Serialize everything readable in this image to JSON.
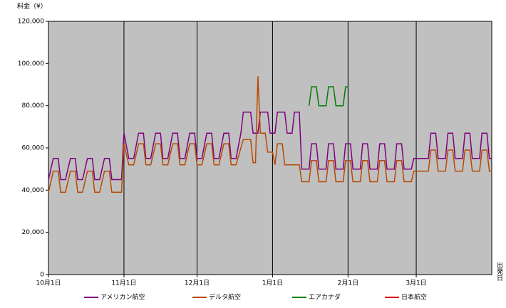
{
  "chart_data": {
    "type": "line",
    "y_label": "料金（¥）",
    "x_label": "出発日",
    "xlim": [
      0,
      182
    ],
    "xticks": [
      {
        "value": 0,
        "label": "10月1日"
      },
      {
        "value": 31,
        "label": "11月1日"
      },
      {
        "value": 61,
        "label": "12月1日"
      },
      {
        "value": 92,
        "label": "1月1日"
      },
      {
        "value": 123,
        "label": "2月1日"
      },
      {
        "value": 151,
        "label": "3月1日"
      }
    ],
    "ylim": [
      0,
      120000
    ],
    "yticks": [
      0,
      {
        "value": 20000,
        "label": "20,000"
      },
      {
        "value": 40000,
        "label": "40,000"
      },
      {
        "value": 60000,
        "label": "60,000"
      },
      {
        "value": 80000,
        "label": "80,000"
      },
      {
        "value": 100000,
        "label": "100,000"
      },
      {
        "value": 120000,
        "label": "120,000"
      }
    ],
    "grid": true,
    "series": [
      {
        "name": "アメリカン航空",
        "color": "#800080",
        "x": [
          0,
          2,
          4,
          5,
          7,
          9,
          11,
          12,
          14,
          16,
          18,
          19,
          21,
          23,
          25,
          26,
          28,
          30,
          31,
          33,
          35,
          37,
          39,
          40,
          42,
          44,
          46,
          47,
          49,
          51,
          53,
          54,
          56,
          58,
          60,
          61,
          63,
          65,
          67,
          68,
          70,
          72,
          74,
          75,
          77,
          79,
          80,
          83,
          84,
          86,
          87,
          90,
          91,
          93,
          94,
          97,
          98,
          100,
          101,
          103,
          104,
          107,
          108,
          110,
          111,
          114,
          115,
          117,
          118,
          121,
          122,
          124,
          125,
          128,
          129,
          131,
          132,
          135,
          136,
          138,
          139,
          142,
          143,
          145,
          146,
          149,
          150,
          156,
          157,
          159,
          160,
          163,
          164,
          166,
          167,
          170,
          171,
          173,
          174,
          177,
          178,
          180,
          181,
          182
        ],
        "values": [
          45000,
          55000,
          55000,
          45000,
          45000,
          55000,
          55000,
          45000,
          45000,
          55000,
          55000,
          45000,
          45000,
          55000,
          55000,
          45000,
          45000,
          45000,
          67000,
          55000,
          55000,
          67000,
          67000,
          55000,
          55000,
          67000,
          67000,
          55000,
          55000,
          67000,
          67000,
          55000,
          55000,
          67000,
          67000,
          55000,
          55000,
          67000,
          67000,
          55000,
          55000,
          67000,
          67000,
          55000,
          55000,
          67000,
          77000,
          77000,
          67000,
          67000,
          77000,
          77000,
          67000,
          67000,
          77000,
          77000,
          67000,
          67000,
          77000,
          77000,
          50000,
          50000,
          62000,
          62000,
          50000,
          50000,
          62000,
          62000,
          50000,
          50000,
          62000,
          62000,
          50000,
          50000,
          62000,
          62000,
          50000,
          50000,
          62000,
          62000,
          50000,
          50000,
          62000,
          62000,
          50000,
          50000,
          55000,
          55000,
          67000,
          67000,
          55000,
          55000,
          67000,
          67000,
          55000,
          55000,
          67000,
          67000,
          55000,
          55000,
          67000,
          67000,
          55000,
          55000
        ]
      },
      {
        "name": "デルタ航空",
        "color": "#b84a00",
        "x": [
          0,
          2,
          4,
          5,
          7,
          9,
          11,
          12,
          14,
          16,
          18,
          19,
          21,
          23,
          25,
          26,
          28,
          30,
          31,
          33,
          35,
          37,
          39,
          40,
          42,
          44,
          46,
          47,
          49,
          51,
          53,
          54,
          56,
          58,
          60,
          61,
          63,
          65,
          67,
          68,
          70,
          72,
          74,
          75,
          77,
          80,
          83,
          84,
          85,
          86,
          87,
          89,
          90,
          92,
          93,
          94,
          96,
          97,
          103,
          104,
          107,
          108,
          110,
          111,
          114,
          115,
          117,
          118,
          121,
          122,
          124,
          125,
          128,
          129,
          131,
          132,
          135,
          136,
          138,
          139,
          142,
          143,
          145,
          146,
          149,
          150,
          156,
          157,
          159,
          160,
          163,
          164,
          166,
          167,
          170,
          171,
          173,
          174,
          177,
          178,
          180,
          181,
          182
        ],
        "values": [
          39000,
          49000,
          49000,
          39000,
          39000,
          49000,
          49000,
          39000,
          39000,
          49000,
          49000,
          39000,
          39000,
          49000,
          49000,
          39000,
          39000,
          39000,
          62000,
          52000,
          52000,
          62000,
          62000,
          52000,
          52000,
          62000,
          62000,
          52000,
          52000,
          62000,
          62000,
          52000,
          52000,
          62000,
          62000,
          52000,
          52000,
          62000,
          62000,
          52000,
          52000,
          62000,
          62000,
          52000,
          52000,
          64000,
          64000,
          53000,
          53000,
          94000,
          67000,
          67000,
          58000,
          58000,
          52000,
          62000,
          62000,
          52000,
          52000,
          44000,
          44000,
          54000,
          54000,
          44000,
          44000,
          54000,
          54000,
          44000,
          44000,
          54000,
          54000,
          44000,
          44000,
          54000,
          54000,
          44000,
          44000,
          54000,
          54000,
          44000,
          44000,
          54000,
          54000,
          44000,
          44000,
          49000,
          49000,
          59000,
          59000,
          49000,
          49000,
          59000,
          59000,
          49000,
          49000,
          59000,
          59000,
          49000,
          49000,
          59000,
          59000,
          49000,
          49000
        ]
      },
      {
        "name": "エアカナダ",
        "color": "#008000",
        "x": [
          107,
          108,
          110,
          111,
          114,
          115,
          117,
          118,
          121,
          122,
          123
        ],
        "values": [
          80000,
          89000,
          89000,
          80000,
          80000,
          89000,
          89000,
          80000,
          80000,
          89000,
          89000
        ]
      },
      {
        "name": "日本航空",
        "color": "#e00000",
        "x": [],
        "values": []
      }
    ]
  }
}
